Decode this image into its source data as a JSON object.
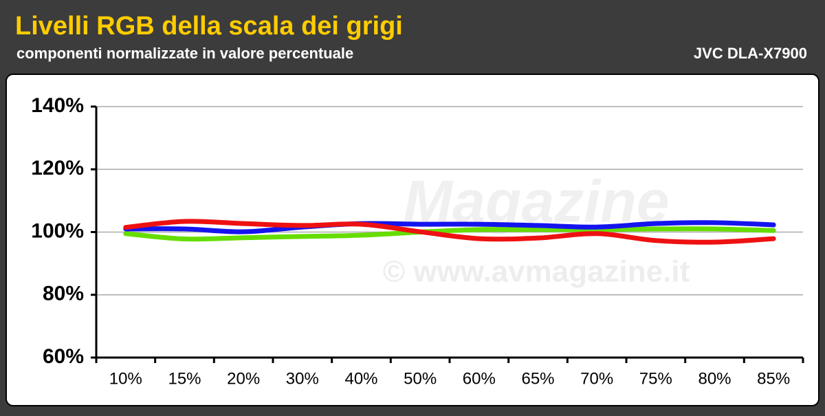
{
  "header": {
    "title": "Livelli RGB della scala dei grigi",
    "subtitle": "componenti normalizzate in valore percentuale",
    "device": "JVC DLA-X7900"
  },
  "watermark": {
    "brand": "Magazine",
    "site": "© www.avmagazine.it"
  },
  "chart_data": {
    "type": "line",
    "categories": [
      "10%",
      "15%",
      "20%",
      "30%",
      "40%",
      "50%",
      "60%",
      "65%",
      "70%",
      "75%",
      "80%",
      "85%"
    ],
    "series": [
      {
        "color": "#66dd00",
        "values": [
          99.5,
          97.8,
          98.2,
          98.6,
          99,
          100,
          100.8,
          100.8,
          100.8,
          101,
          101,
          100.5
        ]
      },
      {
        "color": "#1414ee",
        "values": [
          101,
          101,
          100.1,
          101.6,
          102.7,
          102.5,
          102.5,
          102.1,
          101.6,
          102.7,
          103,
          102.3
        ]
      },
      {
        "color": "#ee1111",
        "values": [
          101.5,
          103.4,
          102.7,
          102.1,
          102.5,
          100.1,
          97.9,
          98.1,
          99.5,
          97.3,
          96.8,
          97.9
        ]
      }
    ],
    "ylim": [
      60,
      140
    ],
    "yticks": [
      {
        "value": 60,
        "label": "60%"
      },
      {
        "value": 80,
        "label": "80%"
      },
      {
        "value": 100,
        "label": "100%"
      },
      {
        "value": 120,
        "label": "120%"
      },
      {
        "value": 140,
        "label": "140%"
      }
    ],
    "grid": true
  }
}
